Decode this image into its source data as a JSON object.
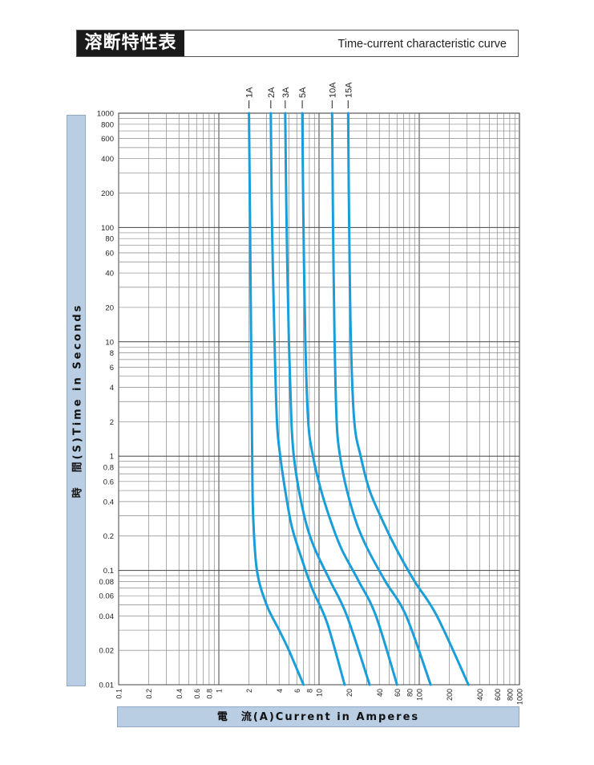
{
  "header": {
    "title_jp": "溶断特性表",
    "title_en": "Time-current characteristic curve"
  },
  "chart_data": {
    "type": "line",
    "title": "Time-current characteristic curve",
    "xlabel": "電　流(A)Current in Amperes",
    "ylabel": "時　間(S)Time in Seconds",
    "xscale": "log",
    "yscale": "log",
    "xlim": [
      0.1,
      1000
    ],
    "ylim": [
      0.01,
      1000
    ],
    "xticks": [
      0.1,
      0.2,
      0.4,
      0.6,
      0.8,
      1,
      2,
      4,
      6,
      8,
      10,
      20,
      40,
      60,
      80,
      100,
      200,
      400,
      600,
      800,
      1000
    ],
    "xtick_labels": [
      "0.1",
      "0.2",
      "0.4",
      "0.6",
      "0.8",
      "1",
      "2",
      "4",
      "6",
      "8",
      "10",
      "20",
      "40",
      "60",
      "80",
      "100",
      "200",
      "400",
      "600",
      "800",
      "1000"
    ],
    "yticks": [
      0.01,
      0.02,
      0.04,
      0.06,
      0.08,
      0.1,
      0.2,
      0.4,
      0.6,
      0.8,
      1,
      2,
      4,
      6,
      8,
      10,
      20,
      40,
      60,
      80,
      100,
      200,
      400,
      600,
      800,
      1000
    ],
    "ytick_labels": [
      "0.01",
      "0.02",
      "0.04",
      "0.06",
      "0.08",
      "0.1",
      "0.2",
      "0.4",
      "0.6",
      "0.8",
      "1",
      "2",
      "4",
      "6",
      "8",
      "10",
      "20",
      "40",
      "60",
      "80",
      "100",
      "200",
      "400",
      "600",
      "800",
      "1000"
    ],
    "grid": true,
    "line_color": "#1a9ed9",
    "series": [
      {
        "name": "1A",
        "points": [
          [
            2.0,
            1000
          ],
          [
            2.05,
            100
          ],
          [
            2.1,
            10
          ],
          [
            2.15,
            1
          ],
          [
            2.2,
            0.3
          ],
          [
            2.4,
            0.1
          ],
          [
            3.0,
            0.05
          ],
          [
            4.0,
            0.03
          ],
          [
            5.0,
            0.02
          ],
          [
            7.0,
            0.01
          ]
        ]
      },
      {
        "name": "2A",
        "points": [
          [
            3.3,
            1000
          ],
          [
            3.4,
            100
          ],
          [
            3.6,
            10
          ],
          [
            3.8,
            2
          ],
          [
            4.1,
            1
          ],
          [
            4.6,
            0.5
          ],
          [
            5.3,
            0.25
          ],
          [
            6.3,
            0.15
          ],
          [
            8.5,
            0.07
          ],
          [
            12,
            0.035
          ],
          [
            18,
            0.01
          ]
        ]
      },
      {
        "name": "3A",
        "points": [
          [
            4.6,
            1000
          ],
          [
            4.75,
            100
          ],
          [
            5.0,
            10
          ],
          [
            5.3,
            2
          ],
          [
            5.6,
            1
          ],
          [
            6.3,
            0.5
          ],
          [
            7.5,
            0.25
          ],
          [
            9.2,
            0.15
          ],
          [
            13,
            0.08
          ],
          [
            19,
            0.04
          ],
          [
            32,
            0.01
          ]
        ]
      },
      {
        "name": "5A",
        "points": [
          [
            6.8,
            1000
          ],
          [
            7.0,
            100
          ],
          [
            7.3,
            10
          ],
          [
            7.8,
            2
          ],
          [
            8.7,
            1
          ],
          [
            10.5,
            0.5
          ],
          [
            13.5,
            0.25
          ],
          [
            17,
            0.15
          ],
          [
            25,
            0.08
          ],
          [
            37,
            0.04
          ],
          [
            60,
            0.01
          ]
        ]
      },
      {
        "name": "10A",
        "points": [
          [
            13.5,
            1000
          ],
          [
            13.8,
            100
          ],
          [
            14.3,
            10
          ],
          [
            15.0,
            2
          ],
          [
            16.2,
            1
          ],
          [
            19,
            0.5
          ],
          [
            24,
            0.25
          ],
          [
            31,
            0.15
          ],
          [
            46,
            0.08
          ],
          [
            74,
            0.04
          ],
          [
            130,
            0.01
          ]
        ]
      },
      {
        "name": "15A",
        "points": [
          [
            19.5,
            1000
          ],
          [
            20,
            100
          ],
          [
            20.8,
            10
          ],
          [
            22.5,
            2
          ],
          [
            26,
            1
          ],
          [
            32,
            0.5
          ],
          [
            45,
            0.25
          ],
          [
            60,
            0.15
          ],
          [
            90,
            0.08
          ],
          [
            150,
            0.04
          ],
          [
            310,
            0.01
          ]
        ]
      }
    ]
  }
}
